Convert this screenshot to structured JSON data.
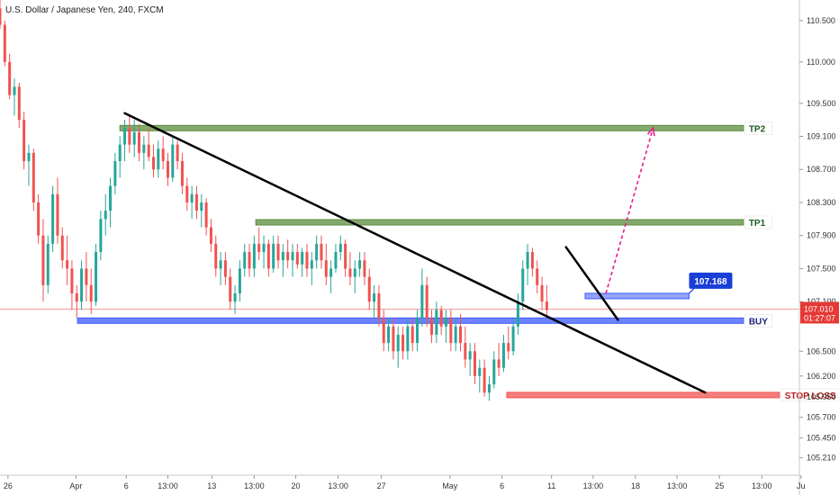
{
  "chart_data": {
    "type": "candlestick",
    "title": "U.S. Dollar / Japanese Yen, 240, FXCM",
    "y_range": [
      105.0,
      110.75
    ],
    "x_range": [
      0,
      100
    ],
    "y_ticks": [
      "110.500",
      "110.000",
      "109.500",
      "109.100",
      "108.700",
      "108.300",
      "107.900",
      "107.500",
      "107.100",
      "106.500",
      "106.200",
      "105.950",
      "105.700",
      "105.450",
      "105.210"
    ],
    "x_ticks": [
      {
        "label": "26",
        "x": 1
      },
      {
        "label": "Apr",
        "x": 9.5
      },
      {
        "label": "6",
        "x": 15.8
      },
      {
        "label": "13:00",
        "x": 21
      },
      {
        "label": "13",
        "x": 26.5
      },
      {
        "label": "13:00",
        "x": 31.8
      },
      {
        "label": "20",
        "x": 37
      },
      {
        "label": "13:00",
        "x": 42.3
      },
      {
        "label": "27",
        "x": 47.7
      },
      {
        "label": "May",
        "x": 56.3
      },
      {
        "label": "6",
        "x": 62.8
      },
      {
        "label": "11",
        "x": 69
      },
      {
        "label": "13:00",
        "x": 74.2
      },
      {
        "label": "18",
        "x": 79.5
      },
      {
        "label": "13:00",
        "x": 84.7
      },
      {
        "label": "25",
        "x": 90
      },
      {
        "label": "13:00",
        "x": 95.3
      },
      {
        "label": "Ju",
        "x": 100.2
      }
    ],
    "price_badges": [
      {
        "value": "107.010",
        "sub": "01:27:07",
        "price": 107.01
      }
    ],
    "current_price": 107.01,
    "colors": {
      "up": "#26a69a",
      "down": "#ef5350",
      "current": "#e53935"
    },
    "levels": [
      {
        "name": "TP2",
        "label": "TP2",
        "price": 109.2,
        "x_start": 15,
        "x_end": 93,
        "color": "#5b8c3e",
        "text_color": "#1b5e20"
      },
      {
        "name": "TP1",
        "label": "TP1",
        "price": 108.06,
        "x_start": 32,
        "x_end": 93,
        "color": "#5b8c3e",
        "text_color": "#1b5e20"
      },
      {
        "name": "BUY",
        "label": "BUY",
        "price": 106.87,
        "x_start": 9.7,
        "x_end": 93,
        "color": "#3d5afe",
        "text_color": "#1a237e"
      },
      {
        "name": "STOP LOSS",
        "label": "STOP LOSS",
        "price": 105.97,
        "x_start": 63.4,
        "x_end": 97.5,
        "color": "#ef5350",
        "text_color": "#b71c1c"
      }
    ],
    "entry_callout": {
      "label": "107.168",
      "price": 107.168,
      "x_start": 73.2,
      "x_end": 86.2
    },
    "trendlines": [
      {
        "x1": 15.6,
        "y1": 109.38,
        "x2": 88.2,
        "y2": 106.0
      },
      {
        "x1": 70.8,
        "y1": 107.76,
        "x2": 77.3,
        "y2": 106.88
      }
    ],
    "projection_arrow": {
      "x1": 75.8,
      "y1": 107.2,
      "x2": 81.7,
      "y2": 109.2,
      "color": "#e91e8c"
    },
    "candles": [
      [
        0,
        110.65,
        110.75,
        110.4,
        110.45
      ],
      [
        0.6,
        110.45,
        110.5,
        109.95,
        110.0
      ],
      [
        1.2,
        110.0,
        110.1,
        109.55,
        109.6
      ],
      [
        1.8,
        109.6,
        109.8,
        109.35,
        109.7
      ],
      [
        2.4,
        109.7,
        109.75,
        109.2,
        109.3
      ],
      [
        3.0,
        109.3,
        109.4,
        108.7,
        108.8
      ],
      [
        3.6,
        108.8,
        109.0,
        108.5,
        108.9
      ],
      [
        4.2,
        108.9,
        108.95,
        108.2,
        108.3
      ],
      [
        4.8,
        108.3,
        108.4,
        107.8,
        107.9
      ],
      [
        5.4,
        107.9,
        108.1,
        107.1,
        107.3
      ],
      [
        6.0,
        107.3,
        107.9,
        107.2,
        107.8
      ],
      [
        6.6,
        107.8,
        108.5,
        107.7,
        108.4
      ],
      [
        7.2,
        108.4,
        108.6,
        107.8,
        107.9
      ],
      [
        7.8,
        107.9,
        108.0,
        107.5,
        107.6
      ],
      [
        8.4,
        107.6,
        107.9,
        107.3,
        107.5
      ],
      [
        9.0,
        107.5,
        107.6,
        107.0,
        107.2
      ],
      [
        9.6,
        107.2,
        107.3,
        106.9,
        107.1
      ],
      [
        10.2,
        107.1,
        107.6,
        107.0,
        107.5
      ],
      [
        10.8,
        107.5,
        107.7,
        107.1,
        107.3
      ],
      [
        11.4,
        107.3,
        107.5,
        106.95,
        107.1
      ],
      [
        12.0,
        107.1,
        107.8,
        107.05,
        107.7
      ],
      [
        12.6,
        107.7,
        108.2,
        107.6,
        108.1
      ],
      [
        13.2,
        108.1,
        108.4,
        107.9,
        108.2
      ],
      [
        13.8,
        108.2,
        108.6,
        108.0,
        108.5
      ],
      [
        14.4,
        108.5,
        108.9,
        108.4,
        108.8
      ],
      [
        15.0,
        108.8,
        109.1,
        108.6,
        109.0
      ],
      [
        15.6,
        109.0,
        109.3,
        108.8,
        109.2
      ],
      [
        16.2,
        109.2,
        109.35,
        108.9,
        109.0
      ],
      [
        16.8,
        109.0,
        109.3,
        108.85,
        109.15
      ],
      [
        17.4,
        109.15,
        109.25,
        108.8,
        108.9
      ],
      [
        18.0,
        108.9,
        109.1,
        108.7,
        109.0
      ],
      [
        18.6,
        109.0,
        109.2,
        108.8,
        108.85
      ],
      [
        19.2,
        108.85,
        109.0,
        108.6,
        108.7
      ],
      [
        19.8,
        108.7,
        109.05,
        108.6,
        108.95
      ],
      [
        20.4,
        108.95,
        109.1,
        108.7,
        108.8
      ],
      [
        21.0,
        108.8,
        108.9,
        108.5,
        108.6
      ],
      [
        21.6,
        108.6,
        109.1,
        108.55,
        109.0
      ],
      [
        22.2,
        109.0,
        109.05,
        108.7,
        108.8
      ],
      [
        22.8,
        108.8,
        108.9,
        108.4,
        108.5
      ],
      [
        23.4,
        108.5,
        108.6,
        108.2,
        108.3
      ],
      [
        24.0,
        108.3,
        108.5,
        108.1,
        108.4
      ],
      [
        24.6,
        108.4,
        108.5,
        108.1,
        108.2
      ],
      [
        25.2,
        108.2,
        108.4,
        108.0,
        108.3
      ],
      [
        25.8,
        108.3,
        108.35,
        107.9,
        108.0
      ],
      [
        26.4,
        108.0,
        108.1,
        107.7,
        107.8
      ],
      [
        27.0,
        107.8,
        107.9,
        107.4,
        107.5
      ],
      [
        27.6,
        107.5,
        107.7,
        107.3,
        107.6
      ],
      [
        28.2,
        107.6,
        107.7,
        107.3,
        107.4
      ],
      [
        28.8,
        107.4,
        107.5,
        107.0,
        107.1
      ],
      [
        29.4,
        107.1,
        107.3,
        106.95,
        107.2
      ],
      [
        30.0,
        107.2,
        107.6,
        107.1,
        107.5
      ],
      [
        30.6,
        107.5,
        107.8,
        107.4,
        107.7
      ],
      [
        31.2,
        107.7,
        107.8,
        107.4,
        107.5
      ],
      [
        31.8,
        107.5,
        107.9,
        107.4,
        107.8
      ],
      [
        32.4,
        107.8,
        108.0,
        107.6,
        107.7
      ],
      [
        33.0,
        107.7,
        107.9,
        107.5,
        107.8
      ],
      [
        33.6,
        107.8,
        107.85,
        107.4,
        107.5
      ],
      [
        34.2,
        107.5,
        107.9,
        107.45,
        107.8
      ],
      [
        34.8,
        107.8,
        107.9,
        107.5,
        107.6
      ],
      [
        35.4,
        107.6,
        107.8,
        107.4,
        107.7
      ],
      [
        36.0,
        107.7,
        107.85,
        107.5,
        107.6
      ],
      [
        36.6,
        107.6,
        107.8,
        107.4,
        107.7
      ],
      [
        37.2,
        107.7,
        107.8,
        107.5,
        107.55
      ],
      [
        37.8,
        107.55,
        107.75,
        107.4,
        107.7
      ],
      [
        38.4,
        107.7,
        107.8,
        107.4,
        107.5
      ],
      [
        39.0,
        107.5,
        107.7,
        107.3,
        107.6
      ],
      [
        39.6,
        107.6,
        107.9,
        107.5,
        107.8
      ],
      [
        40.2,
        107.8,
        107.9,
        107.5,
        107.6
      ],
      [
        40.8,
        107.6,
        107.8,
        107.3,
        107.4
      ],
      [
        41.4,
        107.4,
        107.6,
        107.2,
        107.5
      ],
      [
        42.0,
        107.5,
        107.8,
        107.45,
        107.7
      ],
      [
        42.6,
        107.7,
        107.9,
        107.6,
        107.8
      ],
      [
        43.2,
        107.8,
        107.85,
        107.4,
        107.5
      ],
      [
        43.8,
        107.5,
        107.7,
        107.3,
        107.4
      ],
      [
        44.4,
        107.4,
        107.6,
        107.2,
        107.5
      ],
      [
        45.0,
        107.5,
        107.7,
        107.4,
        107.6
      ],
      [
        45.6,
        107.6,
        107.7,
        107.3,
        107.4
      ],
      [
        46.2,
        107.4,
        107.5,
        107.0,
        107.1
      ],
      [
        46.8,
        107.1,
        107.3,
        106.9,
        107.2
      ],
      [
        47.4,
        107.2,
        107.3,
        106.8,
        106.9
      ],
      [
        48.0,
        106.9,
        107.0,
        106.5,
        106.6
      ],
      [
        48.6,
        106.6,
        106.9,
        106.5,
        106.8
      ],
      [
        49.2,
        106.8,
        106.9,
        106.4,
        106.5
      ],
      [
        49.8,
        106.5,
        106.8,
        106.3,
        106.7
      ],
      [
        50.4,
        106.7,
        106.8,
        106.4,
        106.5
      ],
      [
        51.0,
        106.5,
        106.9,
        106.4,
        106.8
      ],
      [
        51.6,
        106.8,
        106.9,
        106.5,
        106.6
      ],
      [
        52.2,
        106.6,
        107.0,
        106.5,
        106.9
      ],
      [
        52.8,
        106.9,
        107.5,
        106.8,
        107.3
      ],
      [
        53.4,
        107.3,
        107.4,
        106.8,
        106.9
      ],
      [
        54.0,
        106.9,
        107.0,
        106.6,
        106.7
      ],
      [
        54.6,
        106.7,
        107.1,
        106.6,
        107.0
      ],
      [
        55.2,
        107.0,
        107.05,
        106.7,
        106.8
      ],
      [
        55.8,
        106.8,
        107.0,
        106.6,
        106.9
      ],
      [
        56.4,
        106.9,
        107.0,
        106.5,
        106.6
      ],
      [
        57.0,
        106.6,
        106.9,
        106.5,
        106.8
      ],
      [
        57.6,
        106.8,
        106.95,
        106.5,
        106.6
      ],
      [
        58.2,
        106.6,
        106.8,
        106.3,
        106.4
      ],
      [
        58.8,
        106.4,
        106.6,
        106.2,
        106.5
      ],
      [
        59.4,
        106.5,
        106.6,
        106.1,
        106.2
      ],
      [
        60.0,
        106.2,
        106.4,
        106.0,
        106.3
      ],
      [
        60.6,
        106.3,
        106.4,
        105.95,
        106.0
      ],
      [
        61.2,
        106.0,
        106.2,
        105.9,
        106.1
      ],
      [
        61.8,
        106.1,
        106.5,
        106.05,
        106.4
      ],
      [
        62.4,
        106.4,
        106.6,
        106.2,
        106.3
      ],
      [
        63.0,
        106.3,
        106.7,
        106.25,
        106.6
      ],
      [
        63.6,
        106.6,
        106.8,
        106.4,
        106.5
      ],
      [
        64.2,
        106.5,
        106.9,
        106.45,
        106.8
      ],
      [
        64.8,
        106.8,
        107.2,
        106.7,
        107.1
      ],
      [
        65.4,
        107.1,
        107.6,
        107.0,
        107.5
      ],
      [
        66.0,
        107.5,
        107.8,
        107.3,
        107.7
      ],
      [
        66.6,
        107.7,
        107.75,
        107.4,
        107.5
      ],
      [
        67.2,
        107.5,
        107.6,
        107.2,
        107.3
      ],
      [
        67.8,
        107.3,
        107.4,
        107.0,
        107.1
      ],
      [
        68.4,
        107.1,
        107.3,
        106.9,
        107.0
      ]
    ]
  }
}
